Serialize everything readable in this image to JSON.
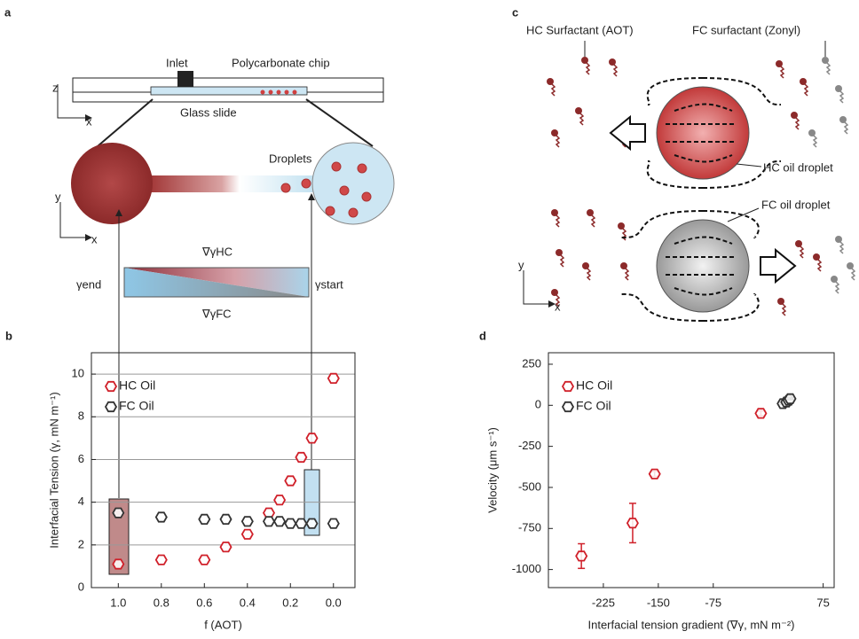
{
  "panel_a": {
    "label": "a",
    "inlet": "Inlet",
    "chip": "Polycarbonate chip",
    "z": "z",
    "x1": "x",
    "glass": "Glass slide",
    "droplets": "Droplets",
    "y": "y",
    "x2": "x",
    "grad_hc": "∇γHC",
    "gamma_end": "γend",
    "gamma_start": "γstart",
    "grad_fc": "∇γFC"
  },
  "panel_c": {
    "label": "c",
    "hc_surf": "HC Surfactant (AOT)",
    "fc_surf": "FC surfactant (Zonyl)",
    "hc_drop": "HC oil droplet",
    "fc_drop": "FC oil droplet",
    "y": "y",
    "x": "x"
  },
  "chart_data": [
    {
      "type": "scatter",
      "label": "b",
      "xlabel": "f (AOT)",
      "ylabel": "Interfacial Tension (γ, mN m⁻¹)",
      "xlim": [
        1.125,
        -0.1
      ],
      "ylim": [
        0,
        11
      ],
      "xticks": [
        {
          "value": 1.0,
          "label": "1.0"
        },
        {
          "value": 0.8,
          "label": "0.8"
        },
        0.6,
        0.4,
        0.2,
        {
          "value": 0.0,
          "label": "0.0"
        }
      ],
      "yticks": [
        0,
        2,
        4,
        6,
        8,
        10
      ],
      "grid": true,
      "legend": "upper left",
      "series": [
        {
          "name": "HC Oil",
          "color": "#d0202a",
          "x": [
            1.0,
            0.8,
            0.6,
            0.5,
            0.4,
            0.3,
            0.25,
            0.2,
            0.15,
            0.1,
            0.0
          ],
          "values": [
            1.1,
            1.3,
            1.3,
            1.9,
            2.5,
            3.5,
            4.1,
            5.0,
            6.1,
            7.0,
            9.8
          ]
        },
        {
          "name": "FC Oil",
          "color": "#333333",
          "x": [
            1.0,
            0.8,
            0.6,
            0.5,
            0.4,
            0.3,
            0.25,
            0.2,
            0.15,
            0.1,
            0.0
          ],
          "values": [
            3.5,
            3.3,
            3.2,
            3.2,
            3.1,
            3.1,
            3.1,
            3.0,
            3.0,
            3.0,
            3.0
          ]
        }
      ]
    },
    {
      "type": "scatter",
      "label": "d",
      "xlabel": "Interfacial tension gradient (∇γ, mN m⁻²)",
      "ylabel": "Velocity (μm s⁻¹)",
      "xlim": [
        -300,
        90
      ],
      "ylim": [
        -1110,
        320
      ],
      "xticks": [
        -225,
        -150,
        -75,
        75
      ],
      "yticks": [
        250,
        0,
        -250,
        -500,
        -750,
        -1000
      ],
      "grid": false,
      "legend": "upper left",
      "series": [
        {
          "name": "HC Oil",
          "color": "#d0202a",
          "x": [
            -255,
            -185,
            -155,
            -10
          ],
          "values": [
            -918,
            -717,
            -418,
            -49
          ],
          "errors": [
            75,
            120,
            15,
            15
          ]
        },
        {
          "name": "FC Oil",
          "color": "#333333",
          "x": [
            20,
            25,
            28,
            30
          ],
          "values": [
            10,
            20,
            30,
            40
          ],
          "errors": [
            5,
            5,
            5,
            5
          ]
        }
      ]
    }
  ]
}
